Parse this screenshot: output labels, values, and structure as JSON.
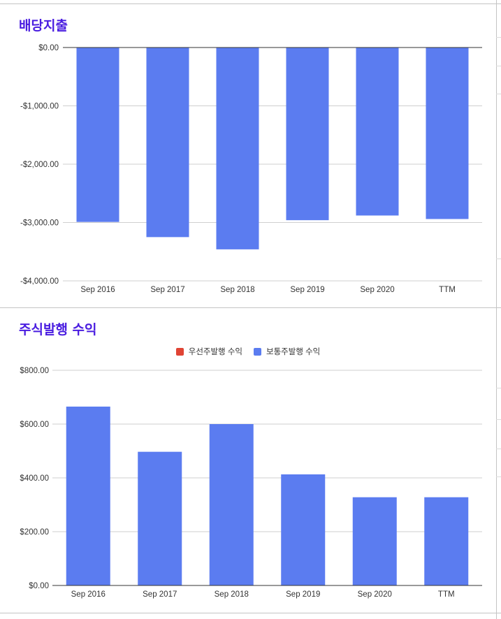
{
  "colors": {
    "title": "#4a1de0",
    "bar_primary": "#5b7cf0",
    "legend_red": "#e04434",
    "grid": "#cfcfcf",
    "axis": "#333333"
  },
  "chart_data": [
    {
      "type": "bar",
      "title": "배당지출",
      "categories": [
        "Sep 2016",
        "Sep 2017",
        "Sep 2018",
        "Sep 2019",
        "Sep 2020",
        "TTM"
      ],
      "series": [
        {
          "values": [
            -2990,
            -3250,
            -3460,
            -2960,
            -2880,
            -2940
          ]
        }
      ],
      "yticks": [
        "$0.00",
        "-$1,000.00",
        "-$2,000.00",
        "-$3,000.00",
        "-$4,000.00"
      ],
      "ylim": [
        -4000,
        0
      ],
      "grid": true,
      "legend": "none"
    },
    {
      "type": "bar",
      "title": "주식발행 수익",
      "categories": [
        "Sep 2016",
        "Sep 2017",
        "Sep 2018",
        "Sep 2019",
        "Sep 2020",
        "TTM"
      ],
      "series": [
        {
          "name": "우선주발행 수익",
          "values": [
            0,
            0,
            0,
            0,
            0,
            0
          ]
        },
        {
          "name": "보통주발행 수익",
          "values": [
            665,
            497,
            600,
            413,
            328,
            328
          ]
        }
      ],
      "yticks": [
        "$800.00",
        "$600.00",
        "$400.00",
        "$200.00",
        "$0.00"
      ],
      "ylim": [
        0,
        800
      ],
      "grid": true,
      "legend": "top"
    }
  ]
}
